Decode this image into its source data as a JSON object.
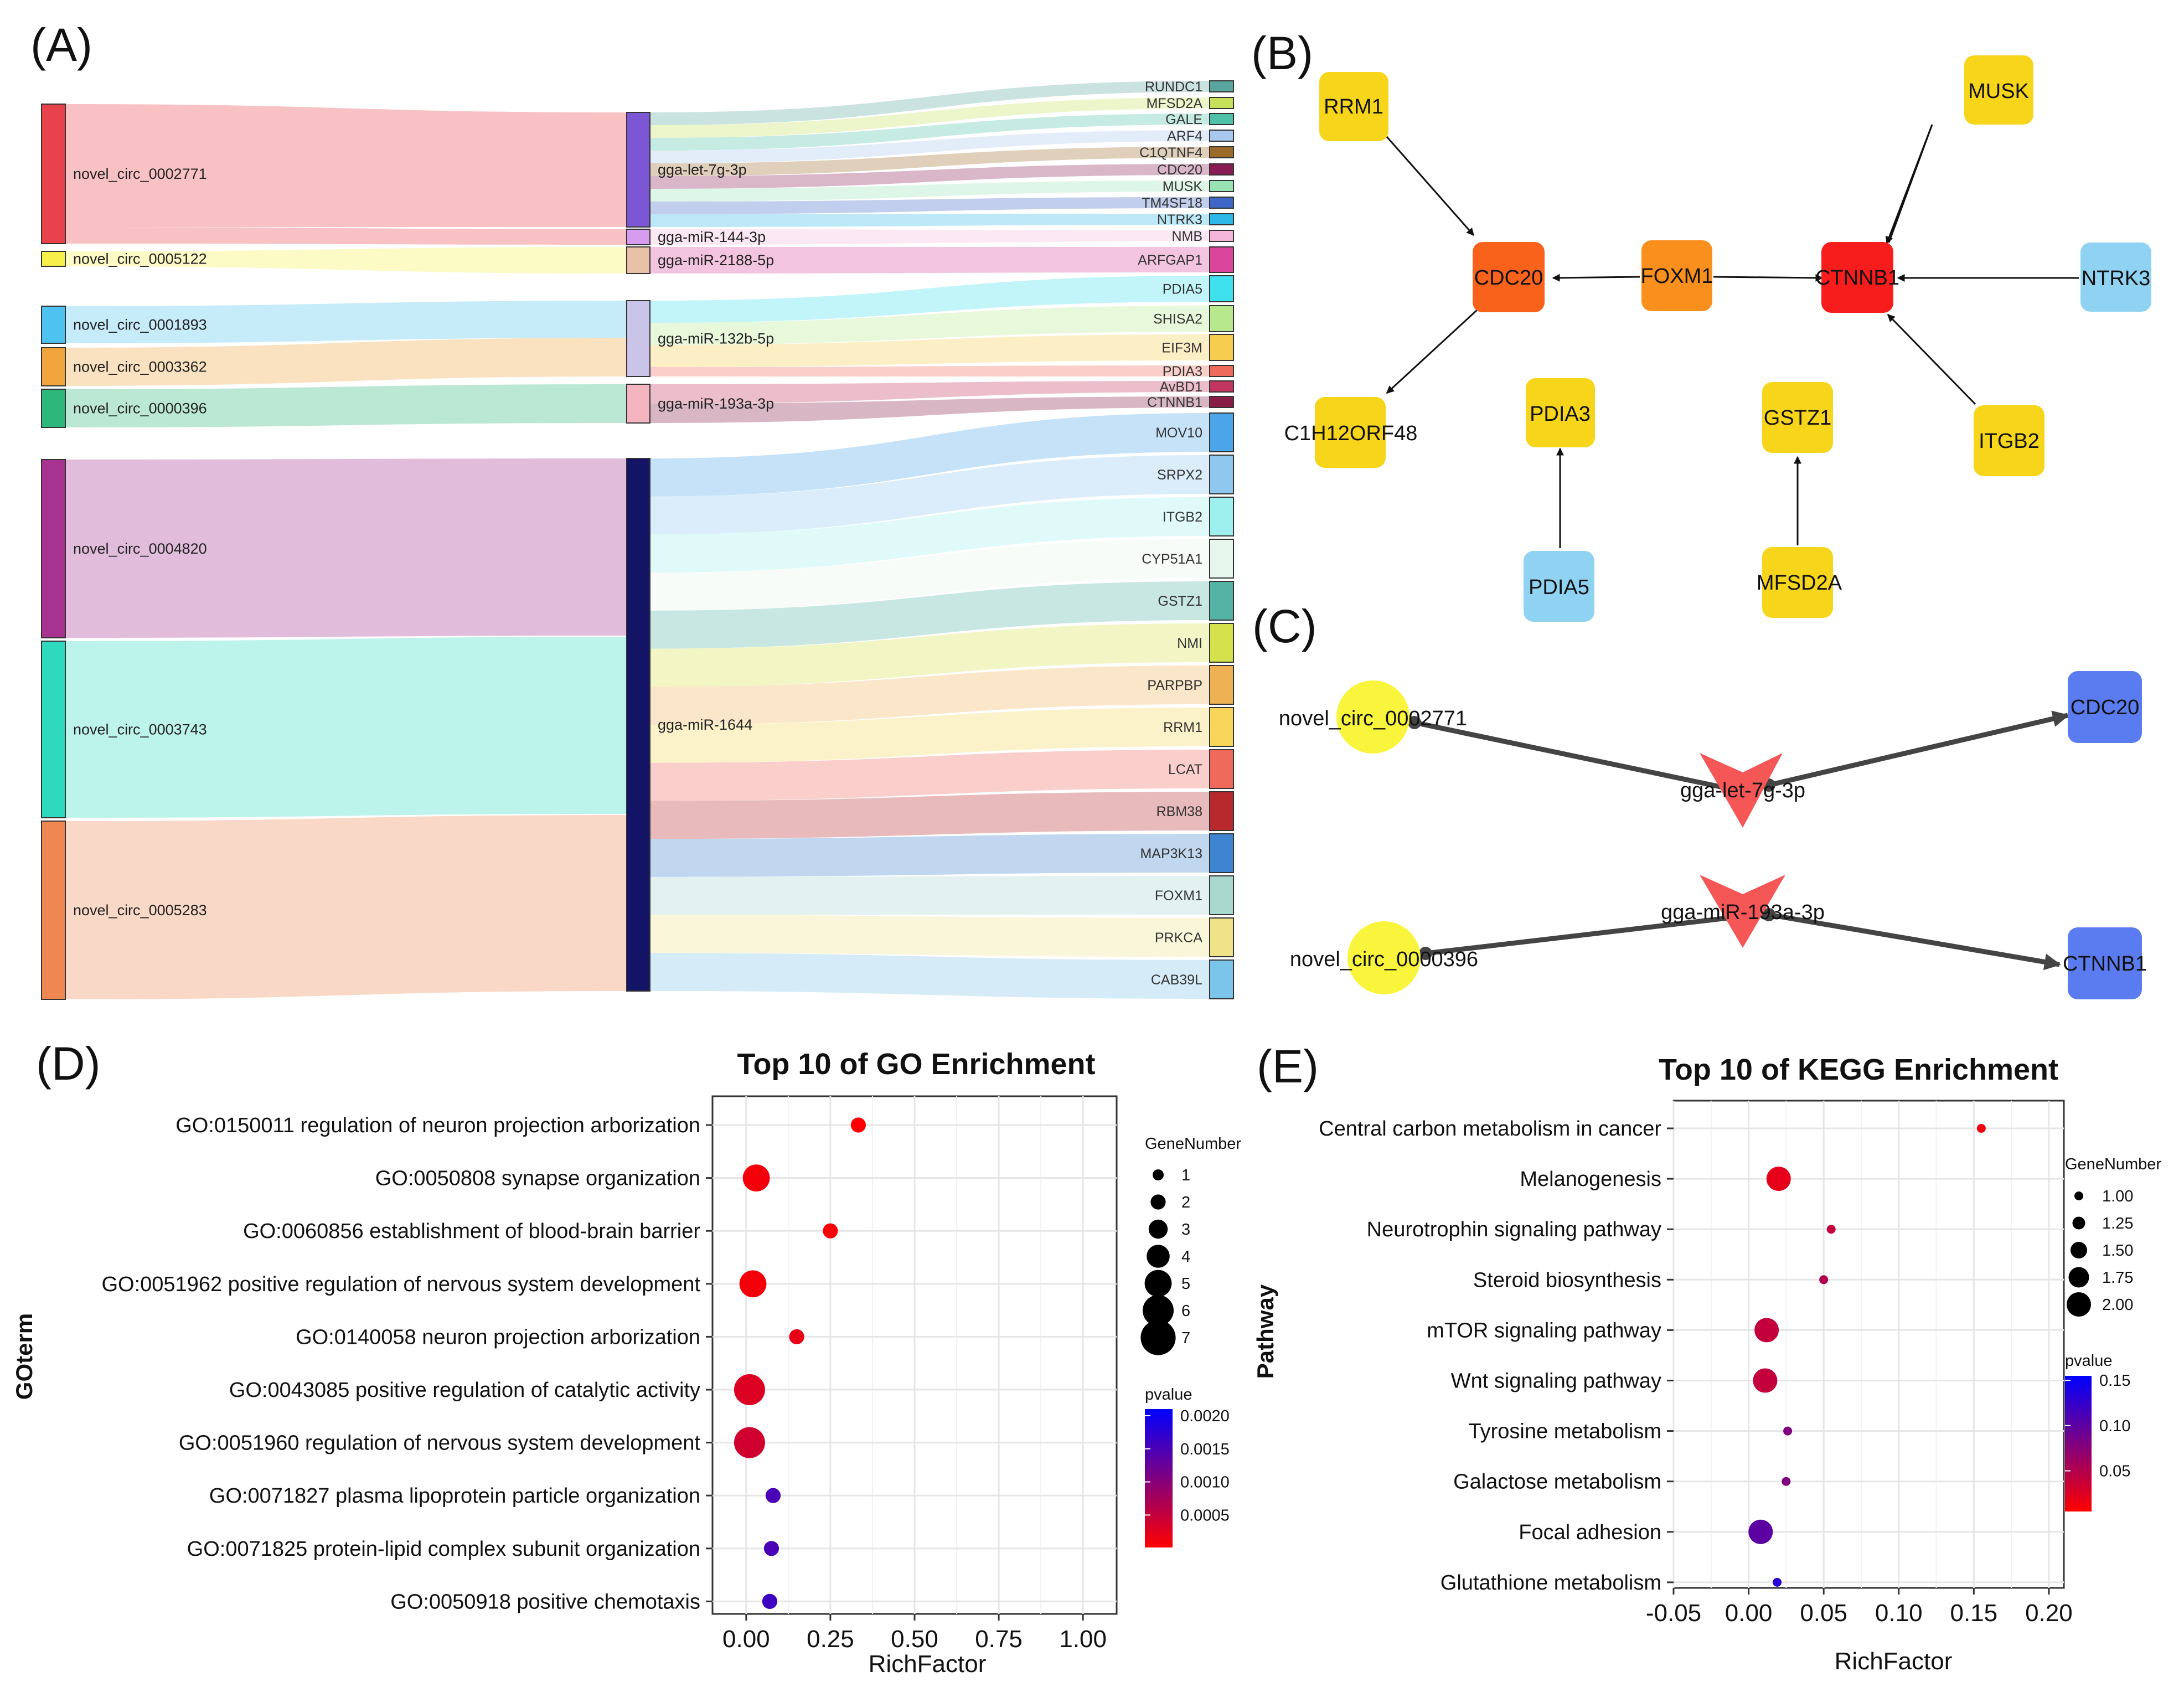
{
  "panels": {
    "a": "(A)",
    "b": "(B)",
    "c": "(C)",
    "d": "(D)",
    "e": "(E)"
  },
  "sankey": {
    "sources": [
      {
        "label": "novel_circ_0002771",
        "color": "#e8424c"
      },
      {
        "label": "novel_circ_0005122",
        "color": "#f7f04a"
      },
      {
        "label": "novel_circ_0001893",
        "color": "#4fc3ef"
      },
      {
        "label": "novel_circ_0003362",
        "color": "#f0a63c"
      },
      {
        "label": "novel_circ_0000396",
        "color": "#2db77a"
      },
      {
        "label": "novel_circ_0004820",
        "color": "#a6338f"
      },
      {
        "label": "novel_circ_0003743",
        "color": "#2fd9be"
      },
      {
        "label": "novel_circ_0005283",
        "color": "#ee8751"
      }
    ],
    "mirnas": [
      {
        "label": "gga-let-7g-3p",
        "color": "#7b57d6"
      },
      {
        "label": "gga-miR-144-3p",
        "color": "#d59cf0"
      },
      {
        "label": "gga-miR-2188-5p",
        "color": "#e8c2a8"
      },
      {
        "label": "gga-miR-132b-5p",
        "color": "#c9c4e8"
      },
      {
        "label": "gga-miR-193a-3p",
        "color": "#f5b5c0"
      },
      {
        "label": "gga-miR-1644",
        "color": "#141466"
      }
    ],
    "targets": [
      {
        "label": "RUNDC1",
        "color": "#5aa5a0"
      },
      {
        "label": "MFSD2A",
        "color": "#c6e05b"
      },
      {
        "label": "GALE",
        "color": "#4fc1a8"
      },
      {
        "label": "ARF4",
        "color": "#a9c8ee"
      },
      {
        "label": "C1QTNF4",
        "color": "#9b6b2a"
      },
      {
        "label": "CDC20",
        "color": "#8a1b55"
      },
      {
        "label": "MUSK",
        "color": "#98e2b4"
      },
      {
        "label": "TM4SF18",
        "color": "#3f67c8"
      },
      {
        "label": "NTRK3",
        "color": "#2eb8e8"
      },
      {
        "label": "NMB",
        "color": "#f3b6d8"
      },
      {
        "label": "ARFGAP1",
        "color": "#d9469b"
      },
      {
        "label": "PDIA5",
        "color": "#3fe0ee"
      },
      {
        "label": "SHISA2",
        "color": "#b7e88e"
      },
      {
        "label": "EIF3M",
        "color": "#f6cd4f"
      },
      {
        "label": "PDIA3",
        "color": "#ee6a5a"
      },
      {
        "label": "AvBD1",
        "color": "#c33561"
      },
      {
        "label": "CTNNB1",
        "color": "#871c47"
      },
      {
        "label": "MOV10",
        "color": "#4ca4e9"
      },
      {
        "label": "SRPX2",
        "color": "#8fc7ee"
      },
      {
        "label": "ITGB2",
        "color": "#9ef0ef"
      },
      {
        "label": "CYP51A1",
        "color": "#e6f6ec"
      },
      {
        "label": "GSTZ1",
        "color": "#54b3a4"
      },
      {
        "label": "NMI",
        "color": "#d6e24c"
      },
      {
        "label": "PARPBP",
        "color": "#eeb153"
      },
      {
        "label": "RRM1",
        "color": "#f7d65a"
      },
      {
        "label": "LCAT",
        "color": "#f06a5c"
      },
      {
        "label": "RBM38",
        "color": "#b8292e"
      },
      {
        "label": "MAP3K13",
        "color": "#3f84d1"
      },
      {
        "label": "FOXM1",
        "color": "#a9d8cf"
      },
      {
        "label": "PRKCA",
        "color": "#f0e289"
      },
      {
        "label": "CAB39L",
        "color": "#7cc5ea"
      }
    ]
  },
  "network_b": {
    "nodes": [
      {
        "label": "RRM1",
        "color": "#f7d51a"
      },
      {
        "label": "MUSK",
        "color": "#f7d51a"
      },
      {
        "label": "CDC20",
        "color": "#f9621a"
      },
      {
        "label": "FOXM1",
        "color": "#f98f1c"
      },
      {
        "label": "CTNNB1",
        "color": "#f71d1d"
      },
      {
        "label": "NTRK3",
        "color": "#8fd2f2"
      },
      {
        "label": "C1H12ORF48",
        "color": "#f7d51a"
      },
      {
        "label": "PDIA3",
        "color": "#f7d51a"
      },
      {
        "label": "GSTZ1",
        "color": "#f7d51a"
      },
      {
        "label": "ITGB2",
        "color": "#f7d51a"
      },
      {
        "label": "PDIA5",
        "color": "#8fd2f2"
      },
      {
        "label": "MFSD2A",
        "color": "#f7d51a"
      }
    ]
  },
  "network_c": {
    "nodes": [
      {
        "label": "novel_circ_0002771",
        "color": "#f9f53c"
      },
      {
        "label": "gga-let-7g-3p",
        "color": "#f55656"
      },
      {
        "label": "CDC20",
        "color": "#5b7cf1"
      },
      {
        "label": "novel_circ_0000396",
        "color": "#f9f53c"
      },
      {
        "label": "gga-miR-193a-3p",
        "color": "#f55656"
      },
      {
        "label": "CTNNB1",
        "color": "#5b7cf1"
      }
    ]
  },
  "chart_data": [
    {
      "type": "scatter",
      "title": "Top 10 of GO Enrichment",
      "xlabel": "RichFactor",
      "ylabel": "GOterm",
      "xlim": [
        -0.1,
        1.1
      ],
      "xticks": [
        "0.00",
        "0.25",
        "0.50",
        "0.75",
        "1.00"
      ],
      "xtick_values": [
        0,
        0.25,
        0.5,
        0.75,
        1.0
      ],
      "categories": [
        "GO:0150011 regulation of neuron projection arborization",
        "GO:0050808 synapse organization",
        "GO:0060856 establishment of blood-brain barrier",
        "GO:0051962 positive regulation of nervous system development",
        "GO:0140058 neuron projection arborization",
        "GO:0043085 positive regulation of catalytic activity",
        "GO:0051960 regulation of nervous system development",
        "GO:0071827 plasma lipoprotein particle organization",
        "GO:0071825 protein-lipid complex subunit organization",
        "GO:0050918 positive chemotaxis"
      ],
      "richfactor": [
        0.333,
        0.03,
        0.25,
        0.02,
        0.15,
        0.01,
        0.01,
        0.08,
        0.075,
        0.07
      ],
      "gene_number": [
        2,
        5,
        2,
        5,
        2,
        6,
        6,
        2,
        2,
        2
      ],
      "pvalue": [
        2e-05,
        0.0001,
        5e-05,
        0.0001,
        0.0002,
        0.0003,
        0.0004,
        0.0015,
        0.0015,
        0.0016
      ],
      "size_legend": {
        "title": "GeneNumber",
        "values": [
          "1",
          "2",
          "3",
          "4",
          "5",
          "6",
          "7"
        ]
      },
      "color_legend": {
        "title": "pvalue",
        "ticks": [
          "0.0020",
          "0.0015",
          "0.0010",
          "0.0005"
        ],
        "tick_values": [
          0.002,
          0.0015,
          0.001,
          0.0005
        ],
        "range": [
          1e-05,
          0.0021
        ],
        "low_color": "#ff0000",
        "high_color": "#0000ff"
      }
    },
    {
      "type": "scatter",
      "title": "Top 10 of KEGG Enrichment",
      "xlabel": "RichFactor",
      "ylabel": "Pathway",
      "xlim": [
        -0.05,
        0.21
      ],
      "xticks": [
        "-0.05",
        "0.00",
        "0.05",
        "0.10",
        "0.15",
        "0.20"
      ],
      "xtick_values": [
        -0.05,
        0,
        0.05,
        0.1,
        0.15,
        0.2
      ],
      "categories": [
        "Central carbon metabolism in cancer",
        "Melanogenesis",
        "Neurotrophin signaling pathway",
        "Steroid biosynthesis",
        "mTOR signaling pathway",
        "Wnt signaling pathway",
        "Tyrosine metabolism",
        "Galactose metabolism",
        "Focal adhesion",
        "Glutathione metabolism"
      ],
      "richfactor": [
        0.155,
        0.02,
        0.055,
        0.05,
        0.012,
        0.011,
        0.026,
        0.025,
        0.008,
        0.019
      ],
      "gene_number": [
        1,
        2,
        1,
        1,
        2,
        2,
        1,
        1,
        2,
        1
      ],
      "pvalue": [
        0.012,
        0.02,
        0.04,
        0.05,
        0.04,
        0.04,
        0.08,
        0.08,
        0.1,
        0.13
      ],
      "size_legend": {
        "title": "GeneNumber",
        "values": [
          "1.00",
          "1.25",
          "1.50",
          "1.75",
          "2.00"
        ]
      },
      "color_legend": {
        "title": "pvalue",
        "ticks": [
          "0.15",
          "0.10",
          "0.05"
        ],
        "tick_values": [
          0.15,
          0.1,
          0.05
        ],
        "range": [
          0.005,
          0.155
        ],
        "low_color": "#ff0000",
        "high_color": "#0000ff"
      }
    }
  ]
}
